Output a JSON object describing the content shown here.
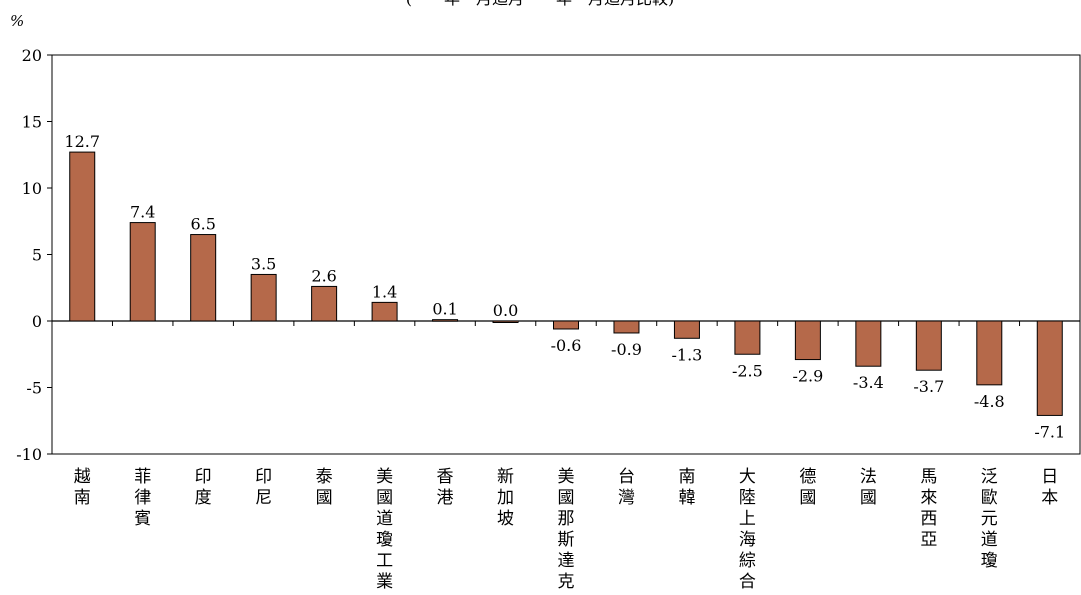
{
  "chart_data": {
    "type": "bar",
    "title": "",
    "subtitle_fragment": "(　　年　月迄月　　年　月迄月比較)",
    "y_unit": "%",
    "xlabel": "",
    "ylabel": "%",
    "ylim": [
      -10,
      20
    ],
    "yticks": [
      20,
      15,
      10,
      5,
      0,
      -5,
      -10
    ],
    "yticks_labels": [
      "20",
      "15",
      "10",
      "5",
      "0",
      "-5",
      "-10"
    ],
    "categories": [
      "越南",
      "菲律賓",
      "印度",
      "印尼",
      "泰國",
      "美國道瓊工業",
      "香港",
      "新加坡",
      "美國那斯達克",
      "台灣",
      "南韓",
      "大陸上海綜合",
      "德國",
      "法國",
      "馬來西亞",
      "泛歐元道瓊",
      "日本"
    ],
    "values": [
      12.7,
      7.4,
      6.5,
      3.5,
      2.6,
      1.4,
      0.1,
      0.0,
      -0.6,
      -0.9,
      -1.3,
      -2.5,
      -2.9,
      -3.4,
      -3.7,
      -4.8,
      -7.1
    ],
    "value_labels": [
      "12.7",
      "7.4",
      "6.5",
      "3.5",
      "2.6",
      "1.4",
      "0.1",
      "0.0",
      "-0.6",
      "-0.9",
      "-1.3",
      "-2.5",
      "-2.9",
      "-3.4",
      "-3.7",
      "-4.8",
      "-7.1"
    ],
    "grid": false,
    "legend": "none",
    "bar_color": "#b5694a",
    "bar_stroke": "#000000"
  }
}
